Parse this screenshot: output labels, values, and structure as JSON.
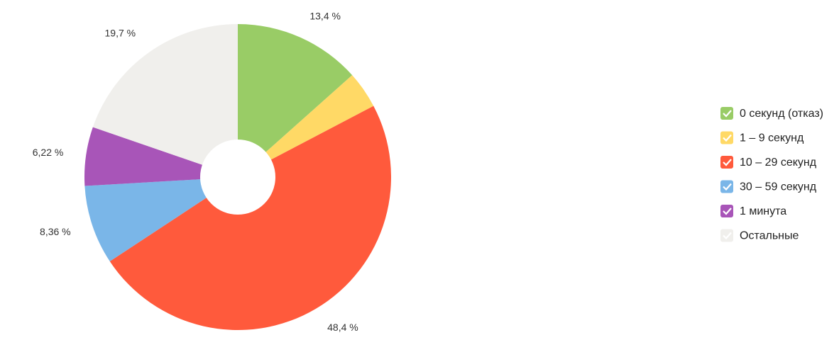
{
  "chart_data": {
    "type": "pie",
    "categories": [
      "0 секунд (отказ)",
      "1 – 9 секунд",
      "10 – 29 секунд",
      "30 – 59 секунд",
      "1 минута",
      "Остальные"
    ],
    "values": [
      13.4,
      3.9,
      48.4,
      8.36,
      6.22,
      19.7
    ],
    "value_labels": [
      "13,4 %",
      null,
      "48,4 %",
      "8,36 %",
      "6,22 %",
      "19,7 %"
    ],
    "colors": [
      "#99cc66",
      "#ffd966",
      "#ff5a3c",
      "#7ab6e8",
      "#a855b8",
      "#f0efec"
    ],
    "legend": "right"
  }
}
